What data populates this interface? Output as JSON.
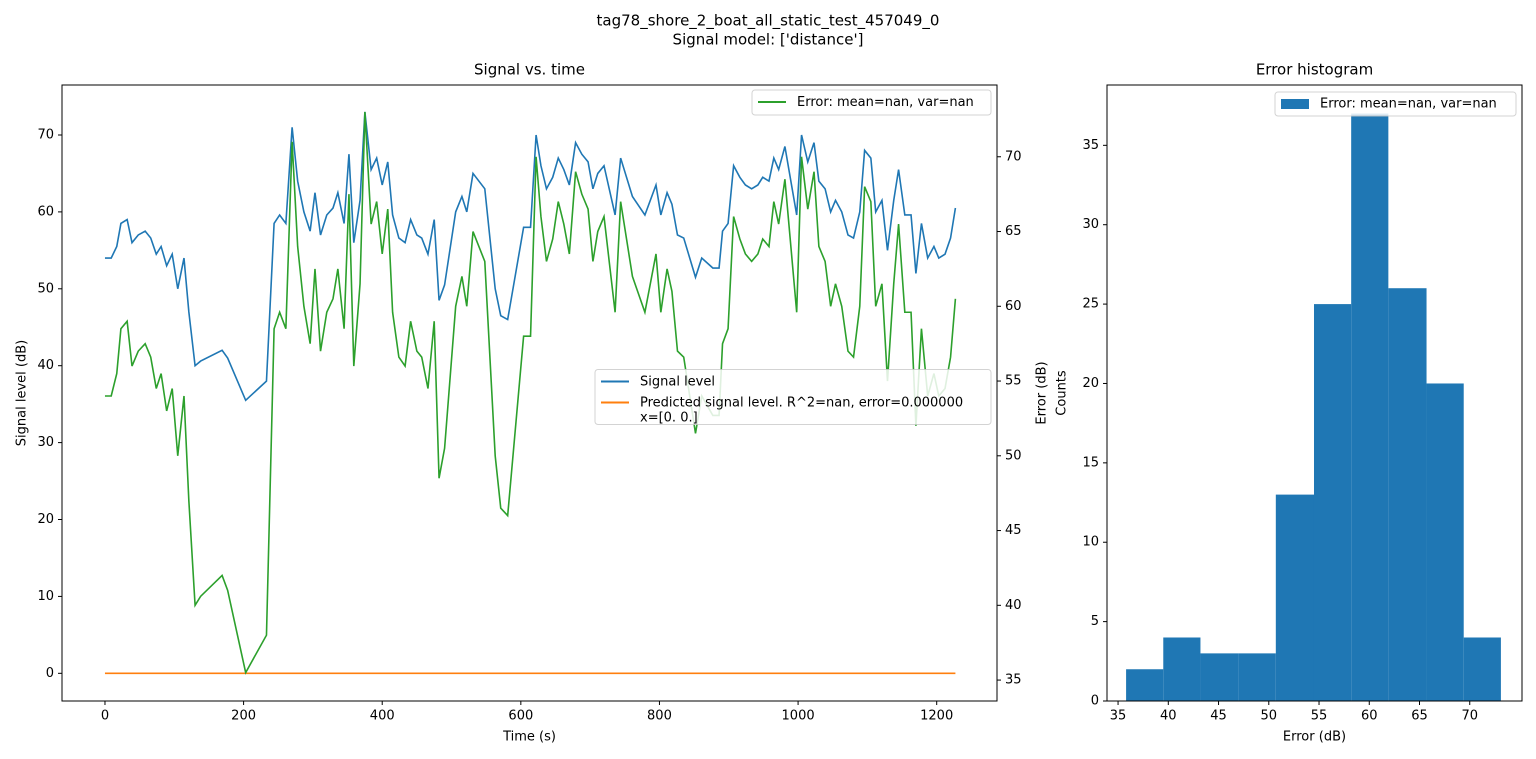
{
  "title": "tag78_shore_2_boat_all_static_test_457049_0",
  "subtitle": "Signal model: ['distance']",
  "chart_data": [
    {
      "type": "line",
      "title": "Signal vs. time",
      "xlabel": "Time (s)",
      "ylabel": "Signal level (dB)",
      "y2label": "Error (dB)",
      "x": [
        0,
        9,
        17,
        23,
        32,
        39,
        48,
        58,
        66,
        74,
        81,
        89,
        97,
        105,
        114,
        121,
        130,
        138,
        169,
        177,
        203,
        233,
        244,
        252,
        261,
        270,
        278,
        287,
        296,
        303,
        311,
        320,
        329,
        336,
        345,
        352,
        359,
        368,
        375,
        384,
        392,
        400,
        408,
        415,
        424,
        433,
        441,
        450,
        457,
        466,
        475,
        482,
        490,
        506,
        515,
        522,
        531,
        548,
        563,
        571,
        581,
        604,
        614,
        622,
        629,
        637,
        646,
        654,
        662,
        670,
        679,
        688,
        697,
        704,
        711,
        720,
        728,
        736,
        744,
        761,
        779,
        795,
        802,
        811,
        818,
        826,
        835,
        852,
        861,
        877,
        886,
        891,
        899,
        907,
        916,
        924,
        933,
        942,
        949,
        958,
        965,
        972,
        981,
        998,
        1005,
        1014,
        1023,
        1030,
        1039,
        1047,
        1054,
        1063,
        1072,
        1080,
        1089,
        1096,
        1105,
        1112,
        1121,
        1129,
        1138,
        1145,
        1154,
        1163,
        1170,
        1178,
        1187,
        1196,
        1203,
        1212,
        1220,
        1227
      ],
      "series": [
        {
          "name": "Signal level",
          "color": "#1f77b4",
          "values": [
            54,
            54,
            55.5,
            58.5,
            59,
            56,
            57,
            57.5,
            56.6,
            54.5,
            55.5,
            53,
            54.5,
            50,
            54,
            47,
            40,
            40.6,
            42,
            41,
            35.5,
            38,
            58.5,
            59.6,
            58.5,
            71,
            64,
            60,
            57.5,
            62.5,
            57,
            59.6,
            60.5,
            62.5,
            58.5,
            67.5,
            56,
            61.5,
            73,
            65.5,
            67,
            63.5,
            66.5,
            59.6,
            56.6,
            56,
            59,
            57,
            56.6,
            54.5,
            59,
            48.5,
            50.5,
            60,
            62,
            60,
            65,
            63,
            50,
            46.5,
            46,
            58,
            58,
            70,
            66,
            63,
            64.5,
            67,
            65.5,
            63.5,
            69,
            67.5,
            66.5,
            63,
            65,
            66,
            62.8,
            59.6,
            67,
            62,
            59.6,
            63.5,
            59.6,
            62.5,
            61,
            57,
            56.6,
            51.5,
            54,
            52.7,
            52.7,
            57.5,
            58.5,
            66,
            64.5,
            63.5,
            63,
            63.5,
            64.5,
            64,
            67,
            65.5,
            68.5,
            59.6,
            70,
            66.5,
            69,
            64,
            63,
            60,
            61.5,
            60,
            57,
            56.6,
            60,
            68,
            67,
            60,
            61.5,
            55,
            61.5,
            65.5,
            59.6,
            59.6,
            52,
            58.5,
            54,
            55.5,
            54,
            54.5,
            56.6,
            60.5
          ]
        },
        {
          "name": "Predicted signal level. R^2=nan, error=0.000000\nx=[0. 0.]",
          "color": "#ff7f0e",
          "x": [
            0,
            1227
          ],
          "values": [
            0,
            0
          ]
        },
        {
          "name": "Error: mean=nan, var=nan",
          "color": "#2ca02c",
          "axis": "y2",
          "values": [
            54,
            54,
            55.5,
            58.5,
            59,
            56,
            57,
            57.5,
            56.6,
            54.5,
            55.5,
            53,
            54.5,
            50,
            54,
            47,
            40,
            40.6,
            42,
            41,
            35.5,
            38,
            58.5,
            59.6,
            58.5,
            71,
            64,
            60,
            57.5,
            62.5,
            57,
            59.6,
            60.5,
            62.5,
            58.5,
            67.5,
            56,
            61.5,
            73,
            65.5,
            67,
            63.5,
            66.5,
            59.6,
            56.6,
            56,
            59,
            57,
            56.6,
            54.5,
            59,
            48.5,
            50.5,
            60,
            62,
            60,
            65,
            63,
            50,
            46.5,
            46,
            58,
            58,
            70,
            66,
            63,
            64.5,
            67,
            65.5,
            63.5,
            69,
            67.5,
            66.5,
            63,
            65,
            66,
            62.8,
            59.6,
            67,
            62,
            59.6,
            63.5,
            59.6,
            62.5,
            61,
            57,
            56.6,
            51.5,
            54,
            52.7,
            52.7,
            57.5,
            58.5,
            66,
            64.5,
            63.5,
            63,
            63.5,
            64.5,
            64,
            67,
            65.5,
            68.5,
            59.6,
            70,
            66.5,
            69,
            64,
            63,
            60,
            61.5,
            60,
            57,
            56.6,
            60,
            68,
            67,
            60,
            61.5,
            55,
            61.5,
            65.5,
            59.6,
            59.6,
            52,
            58.5,
            54,
            55.5,
            54,
            54.5,
            56.6,
            60.5
          ]
        }
      ],
      "xlim": [
        -62,
        1287
      ],
      "xticks": [
        0,
        200,
        400,
        600,
        800,
        1000,
        1200
      ],
      "ylim": [
        -3.6,
        76.5
      ],
      "yticks": [
        0,
        10,
        20,
        30,
        40,
        50,
        60,
        70
      ],
      "y2lim": [
        33.6,
        74.8
      ],
      "y2ticks": [
        35,
        40,
        45,
        50,
        55,
        60,
        65,
        70
      ],
      "legend": "center right",
      "y2legend": "upper right"
    },
    {
      "type": "histogram",
      "title": "Error histogram",
      "xlabel": "Error (dB)",
      "ylabel": "Counts",
      "name": "Error: mean=nan, var=nan",
      "color": "#1f77b4",
      "bins": [
        35.8,
        39.5,
        43.2,
        47.0,
        50.7,
        54.5,
        58.2,
        61.9,
        65.7,
        69.4,
        73.1
      ],
      "counts": [
        2,
        4,
        3,
        3,
        13,
        25,
        37,
        26,
        20,
        4
      ],
      "xlim": [
        33.9,
        75.2
      ],
      "xticks": [
        35,
        40,
        45,
        50,
        55,
        60,
        65,
        70
      ],
      "ylim": [
        0,
        38.8
      ],
      "yticks": [
        0,
        5,
        10,
        15,
        20,
        25,
        30,
        35
      ],
      "legend": "upper right"
    }
  ]
}
